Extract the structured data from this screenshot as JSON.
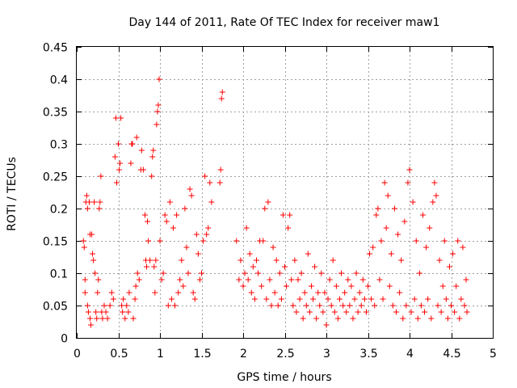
{
  "chart_data": {
    "type": "scatter",
    "title": "Day 144 of 2011, Rate Of TEC Index for receiver maw1",
    "xlabel": "GPS time / hours",
    "ylabel": "ROTI / TECUs",
    "xlim": [
      0,
      5
    ],
    "ylim": [
      0,
      0.45
    ],
    "xticks": [
      0,
      0.5,
      1,
      1.5,
      2,
      2.5,
      3,
      3.5,
      4,
      4.5,
      5
    ],
    "xtick_labels": [
      "0",
      "0.5",
      "1",
      "1.5",
      "2",
      "2.5",
      "3",
      "3.5",
      "4",
      "4.5",
      "5"
    ],
    "yticks": [
      0,
      0.05,
      0.1,
      0.15,
      0.2,
      0.25,
      0.3,
      0.35,
      0.4,
      0.45
    ],
    "ytick_labels": [
      "0",
      "0.05",
      "0.1",
      "0.15",
      "0.2",
      "0.25",
      "0.3",
      "0.35",
      "0.4",
      "0.45"
    ],
    "grid": true,
    "marker": "+",
    "color": "#ff0000",
    "series": [
      {
        "name": "maw1",
        "points": [
          [
            0.08,
            0.15
          ],
          [
            0.09,
            0.14
          ],
          [
            0.1,
            0.09
          ],
          [
            0.1,
            0.07
          ],
          [
            0.11,
            0.21
          ],
          [
            0.12,
            0.22
          ],
          [
            0.13,
            0.2
          ],
          [
            0.13,
            0.05
          ],
          [
            0.14,
            0.04
          ],
          [
            0.15,
            0.21
          ],
          [
            0.16,
            0.16
          ],
          [
            0.16,
            0.03
          ],
          [
            0.17,
            0.02
          ],
          [
            0.18,
            0.16
          ],
          [
            0.19,
            0.13
          ],
          [
            0.2,
            0.12
          ],
          [
            0.21,
            0.21
          ],
          [
            0.22,
            0.1
          ],
          [
            0.23,
            0.04
          ],
          [
            0.24,
            0.03
          ],
          [
            0.25,
            0.07
          ],
          [
            0.26,
            0.09
          ],
          [
            0.27,
            0.2
          ],
          [
            0.28,
            0.21
          ],
          [
            0.29,
            0.25
          ],
          [
            0.3,
            0.04
          ],
          [
            0.31,
            0.03
          ],
          [
            0.33,
            0.05
          ],
          [
            0.35,
            0.04
          ],
          [
            0.37,
            0.03
          ],
          [
            0.4,
            0.05
          ],
          [
            0.42,
            0.07
          ],
          [
            0.44,
            0.06
          ],
          [
            0.46,
            0.28
          ],
          [
            0.47,
            0.34
          ],
          [
            0.48,
            0.24
          ],
          [
            0.5,
            0.3
          ],
          [
            0.51,
            0.26
          ],
          [
            0.52,
            0.27
          ],
          [
            0.53,
            0.34
          ],
          [
            0.54,
            0.05
          ],
          [
            0.55,
            0.04
          ],
          [
            0.56,
            0.06
          ],
          [
            0.58,
            0.03
          ],
          [
            0.6,
            0.05
          ],
          [
            0.62,
            0.04
          ],
          [
            0.63,
            0.07
          ],
          [
            0.65,
            0.27
          ],
          [
            0.66,
            0.3
          ],
          [
            0.67,
            0.3
          ],
          [
            0.68,
            0.03
          ],
          [
            0.7,
            0.06
          ],
          [
            0.71,
            0.08
          ],
          [
            0.72,
            0.31
          ],
          [
            0.73,
            0.1
          ],
          [
            0.75,
            0.09
          ],
          [
            0.77,
            0.26
          ],
          [
            0.78,
            0.29
          ],
          [
            0.8,
            0.26
          ],
          [
            0.82,
            0.19
          ],
          [
            0.83,
            0.12
          ],
          [
            0.84,
            0.11
          ],
          [
            0.85,
            0.18
          ],
          [
            0.86,
            0.15
          ],
          [
            0.88,
            0.12
          ],
          [
            0.9,
            0.25
          ],
          [
            0.91,
            0.28
          ],
          [
            0.92,
            0.29
          ],
          [
            0.93,
            0.11
          ],
          [
            0.94,
            0.07
          ],
          [
            0.95,
            0.12
          ],
          [
            0.96,
            0.33
          ],
          [
            0.97,
            0.35
          ],
          [
            0.98,
            0.36
          ],
          [
            0.99,
            0.4
          ],
          [
            1.0,
            0.15
          ],
          [
            1.02,
            0.09
          ],
          [
            1.04,
            0.1
          ],
          [
            1.06,
            0.19
          ],
          [
            1.08,
            0.18
          ],
          [
            1.1,
            0.05
          ],
          [
            1.12,
            0.21
          ],
          [
            1.14,
            0.06
          ],
          [
            1.16,
            0.17
          ],
          [
            1.18,
            0.05
          ],
          [
            1.2,
            0.19
          ],
          [
            1.22,
            0.07
          ],
          [
            1.24,
            0.09
          ],
          [
            1.26,
            0.12
          ],
          [
            1.28,
            0.08
          ],
          [
            1.3,
            0.2
          ],
          [
            1.32,
            0.14
          ],
          [
            1.34,
            0.1
          ],
          [
            1.36,
            0.23
          ],
          [
            1.38,
            0.22
          ],
          [
            1.4,
            0.07
          ],
          [
            1.42,
            0.06
          ],
          [
            1.44,
            0.16
          ],
          [
            1.46,
            0.13
          ],
          [
            1.48,
            0.09
          ],
          [
            1.5,
            0.1
          ],
          [
            1.52,
            0.15
          ],
          [
            1.54,
            0.25
          ],
          [
            1.56,
            0.16
          ],
          [
            1.58,
            0.17
          ],
          [
            1.6,
            0.24
          ],
          [
            1.62,
            0.21
          ],
          [
            1.72,
            0.24
          ],
          [
            1.73,
            0.26
          ],
          [
            1.74,
            0.37
          ],
          [
            1.75,
            0.38
          ],
          [
            1.92,
            0.15
          ],
          [
            1.95,
            0.09
          ],
          [
            1.97,
            0.12
          ],
          [
            2.0,
            0.08
          ],
          [
            2.02,
            0.1
          ],
          [
            2.04,
            0.17
          ],
          [
            2.06,
            0.09
          ],
          [
            2.08,
            0.13
          ],
          [
            2.1,
            0.07
          ],
          [
            2.12,
            0.11
          ],
          [
            2.14,
            0.06
          ],
          [
            2.16,
            0.12
          ],
          [
            2.18,
            0.1
          ],
          [
            2.2,
            0.15
          ],
          [
            2.22,
            0.08
          ],
          [
            2.24,
            0.15
          ],
          [
            2.26,
            0.2
          ],
          [
            2.28,
            0.06
          ],
          [
            2.3,
            0.21
          ],
          [
            2.32,
            0.09
          ],
          [
            2.34,
            0.05
          ],
          [
            2.36,
            0.14
          ],
          [
            2.38,
            0.07
          ],
          [
            2.4,
            0.12
          ],
          [
            2.42,
            0.05
          ],
          [
            2.44,
            0.1
          ],
          [
            2.46,
            0.06
          ],
          [
            2.48,
            0.19
          ],
          [
            2.5,
            0.11
          ],
          [
            2.52,
            0.08
          ],
          [
            2.54,
            0.17
          ],
          [
            2.56,
            0.19
          ],
          [
            2.58,
            0.09
          ],
          [
            2.6,
            0.05
          ],
          [
            2.62,
            0.12
          ],
          [
            2.64,
            0.04
          ],
          [
            2.66,
            0.09
          ],
          [
            2.68,
            0.06
          ],
          [
            2.7,
            0.1
          ],
          [
            2.72,
            0.03
          ],
          [
            2.74,
            0.07
          ],
          [
            2.76,
            0.05
          ],
          [
            2.78,
            0.13
          ],
          [
            2.8,
            0.04
          ],
          [
            2.82,
            0.08
          ],
          [
            2.84,
            0.06
          ],
          [
            2.86,
            0.11
          ],
          [
            2.88,
            0.03
          ],
          [
            2.9,
            0.07
          ],
          [
            2.92,
            0.05
          ],
          [
            2.94,
            0.1
          ],
          [
            2.96,
            0.04
          ],
          [
            2.98,
            0.07
          ],
          [
            3.0,
            0.02
          ],
          [
            3.02,
            0.06
          ],
          [
            3.04,
            0.09
          ],
          [
            3.06,
            0.05
          ],
          [
            3.08,
            0.12
          ],
          [
            3.1,
            0.04
          ],
          [
            3.12,
            0.08
          ],
          [
            3.14,
            0.03
          ],
          [
            3.16,
            0.06
          ],
          [
            3.18,
            0.1
          ],
          [
            3.2,
            0.05
          ],
          [
            3.22,
            0.07
          ],
          [
            3.24,
            0.04
          ],
          [
            3.26,
            0.09
          ],
          [
            3.28,
            0.05
          ],
          [
            3.3,
            0.08
          ],
          [
            3.32,
            0.03
          ],
          [
            3.34,
            0.06
          ],
          [
            3.36,
            0.1
          ],
          [
            3.38,
            0.04
          ],
          [
            3.4,
            0.07
          ],
          [
            3.42,
            0.05
          ],
          [
            3.44,
            0.09
          ],
          [
            3.46,
            0.06
          ],
          [
            3.48,
            0.04
          ],
          [
            3.5,
            0.08
          ],
          [
            3.52,
            0.13
          ],
          [
            3.54,
            0.06
          ],
          [
            3.56,
            0.14
          ],
          [
            3.58,
            0.05
          ],
          [
            3.6,
            0.19
          ],
          [
            3.62,
            0.2
          ],
          [
            3.64,
            0.09
          ],
          [
            3.66,
            0.15
          ],
          [
            3.68,
            0.06
          ],
          [
            3.7,
            0.24
          ],
          [
            3.72,
            0.17
          ],
          [
            3.74,
            0.22
          ],
          [
            3.76,
            0.08
          ],
          [
            3.78,
            0.13
          ],
          [
            3.8,
            0.05
          ],
          [
            3.82,
            0.2
          ],
          [
            3.84,
            0.04
          ],
          [
            3.86,
            0.16
          ],
          [
            3.88,
            0.07
          ],
          [
            3.9,
            0.12
          ],
          [
            3.92,
            0.03
          ],
          [
            3.94,
            0.18
          ],
          [
            3.96,
            0.05
          ],
          [
            3.98,
            0.24
          ],
          [
            4.0,
            0.26
          ],
          [
            4.02,
            0.04
          ],
          [
            4.04,
            0.21
          ],
          [
            4.06,
            0.06
          ],
          [
            4.08,
            0.15
          ],
          [
            4.1,
            0.03
          ],
          [
            4.12,
            0.1
          ],
          [
            4.14,
            0.05
          ],
          [
            4.16,
            0.19
          ],
          [
            4.18,
            0.04
          ],
          [
            4.2,
            0.14
          ],
          [
            4.22,
            0.06
          ],
          [
            4.24,
            0.17
          ],
          [
            4.26,
            0.03
          ],
          [
            4.28,
            0.21
          ],
          [
            4.3,
            0.24
          ],
          [
            4.32,
            0.22
          ],
          [
            4.34,
            0.05
          ],
          [
            4.36,
            0.12
          ],
          [
            4.38,
            0.04
          ],
          [
            4.4,
            0.08
          ],
          [
            4.42,
            0.15
          ],
          [
            4.44,
            0.06
          ],
          [
            4.46,
            0.03
          ],
          [
            4.48,
            0.11
          ],
          [
            4.5,
            0.05
          ],
          [
            4.52,
            0.13
          ],
          [
            4.54,
            0.04
          ],
          [
            4.56,
            0.08
          ],
          [
            4.58,
            0.15
          ],
          [
            4.6,
            0.03
          ],
          [
            4.62,
            0.06
          ],
          [
            4.64,
            0.14
          ],
          [
            4.66,
            0.05
          ],
          [
            4.68,
            0.09
          ],
          [
            4.69,
            0.04
          ]
        ]
      }
    ]
  }
}
